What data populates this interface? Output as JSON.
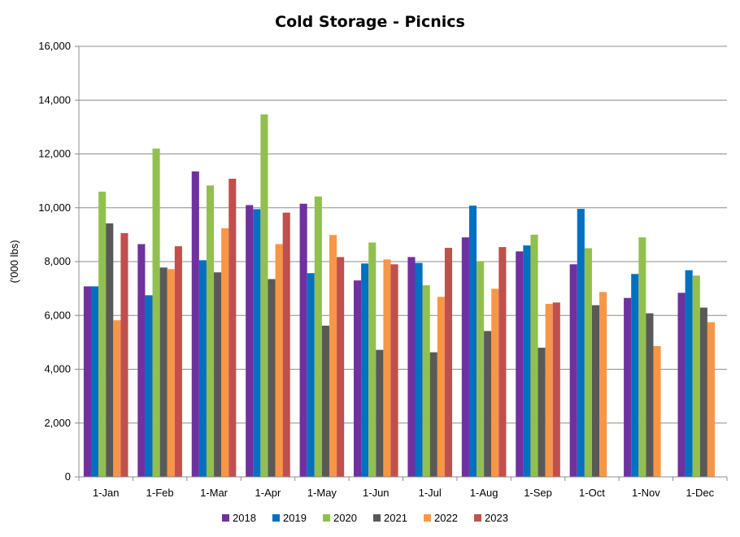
{
  "chart_data": {
    "type": "bar",
    "title": "Cold Storage - Picnics",
    "xlabel": "",
    "ylabel": "('000 lbs)",
    "ylim": [
      0,
      16000
    ],
    "yticks": [
      "0",
      "2,000",
      "4,000",
      "6,000",
      "8,000",
      "10,000",
      "12,000",
      "14,000",
      "16,000"
    ],
    "grid": true,
    "legend_position": "bottom",
    "categories": [
      "1-Jan",
      "1-Feb",
      "1-Mar",
      "1-Apr",
      "1-May",
      "1-Jun",
      "1-Jul",
      "1-Aug",
      "1-Sep",
      "1-Oct",
      "1-Nov",
      "1-Dec"
    ],
    "series": [
      {
        "name": "2018",
        "color": "#7030A0",
        "values": [
          7080,
          8650,
          11350,
          10100,
          10150,
          7300,
          8170,
          8900,
          8380,
          7900,
          6650,
          6840
        ]
      },
      {
        "name": "2019",
        "color": "#0070C0",
        "values": [
          7080,
          6750,
          8050,
          9950,
          7570,
          7930,
          7950,
          10080,
          8600,
          9960,
          7540,
          7680
        ]
      },
      {
        "name": "2020",
        "color": "#92C050",
        "values": [
          10600,
          12200,
          10830,
          13470,
          10420,
          8710,
          7120,
          8020,
          9000,
          8500,
          8900,
          7480
        ]
      },
      {
        "name": "2021",
        "color": "#595959",
        "values": [
          9420,
          7780,
          7600,
          7350,
          5620,
          4720,
          4630,
          5420,
          4800,
          6380,
          6080,
          6290
        ]
      },
      {
        "name": "2022",
        "color": "#F79646",
        "values": [
          5820,
          7720,
          9240,
          8650,
          8990,
          8080,
          6690,
          6990,
          6430,
          6870,
          4860,
          5750
        ]
      },
      {
        "name": "2023",
        "color": "#C0504D",
        "values": [
          9060,
          8570,
          11080,
          9820,
          8170,
          7900,
          8510,
          8540,
          6480,
          null,
          null,
          null
        ]
      }
    ]
  }
}
